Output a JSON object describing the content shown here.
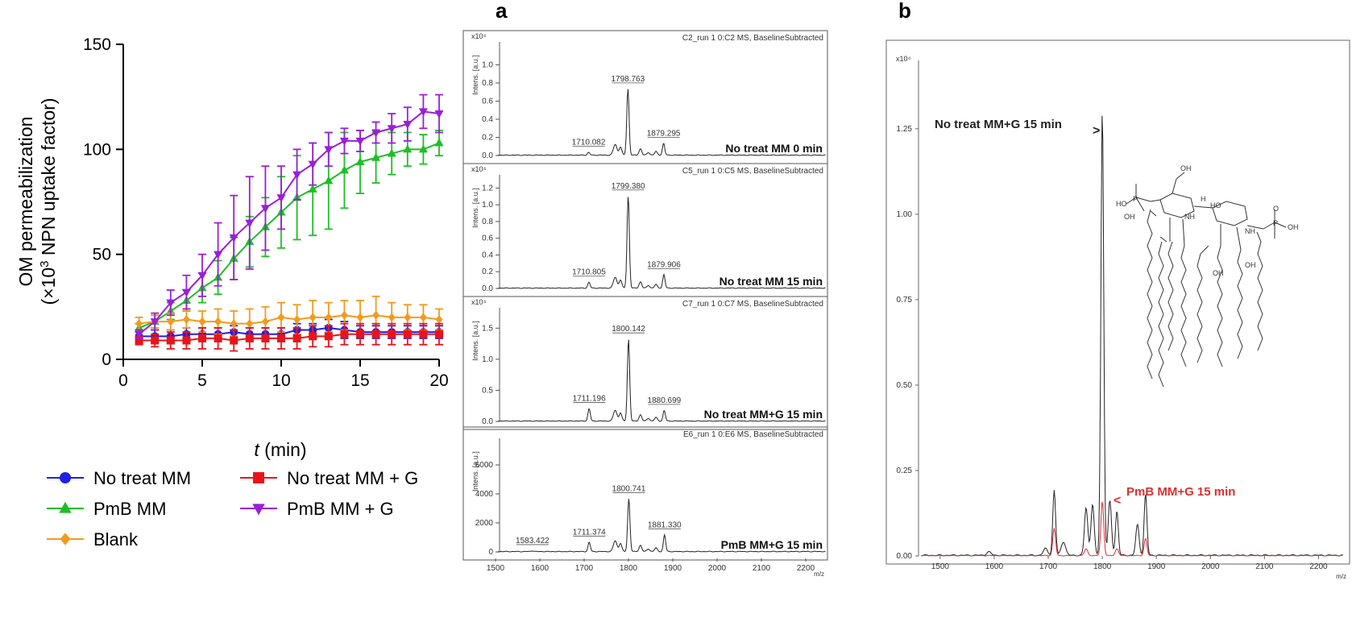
{
  "panel_labels": {
    "a": "a",
    "b": "b"
  },
  "chart_data": [
    {
      "id": "npn",
      "type": "line",
      "ylabel_line1": "OM permeabilization",
      "ylabel_line2_pre": "(×10",
      "ylabel_line2_sup": "3",
      "ylabel_line2_post": " NPN uptake factor)",
      "xlabel_var": "t",
      "xlabel_unit": " (min)",
      "xlim": [
        0,
        20
      ],
      "ylim": [
        0,
        150
      ],
      "xticks": [
        0,
        5,
        10,
        15,
        20
      ],
      "yticks": [
        0,
        50,
        100,
        150
      ],
      "x": [
        1,
        2,
        3,
        4,
        5,
        6,
        7,
        8,
        9,
        10,
        11,
        12,
        13,
        14,
        15,
        16,
        17,
        18,
        19,
        20
      ],
      "series": [
        {
          "name": "No treat MM",
          "color": "#1f1fe6",
          "marker": "circle",
          "values": [
            11,
            11,
            11,
            12,
            12,
            12,
            13,
            12,
            12,
            12,
            14,
            14,
            15,
            14,
            13,
            13,
            13,
            13,
            13,
            13
          ],
          "errors": [
            3,
            3,
            3,
            3,
            3,
            3,
            3,
            3,
            3,
            3,
            3,
            3,
            4,
            4,
            3,
            3,
            3,
            3,
            3,
            3
          ]
        },
        {
          "name": "PmB MM",
          "color": "#1ebe28",
          "marker": "triangle-up",
          "values": [
            15,
            18,
            23,
            28,
            34,
            39,
            48,
            56,
            63,
            70,
            77,
            81,
            85,
            90,
            94,
            96,
            98,
            100,
            100,
            103
          ],
          "errors": [
            2,
            3,
            4,
            5,
            7,
            8,
            10,
            12,
            14,
            17,
            20,
            22,
            23,
            18,
            15,
            12,
            10,
            8,
            7,
            6
          ]
        },
        {
          "name": "Blank",
          "color": "#f39a1c",
          "marker": "diamond",
          "values": [
            17,
            18,
            18,
            19,
            18,
            18,
            17,
            17,
            18,
            20,
            19,
            20,
            20,
            21,
            20,
            21,
            20,
            20,
            20,
            19
          ],
          "errors": [
            3,
            3,
            4,
            4,
            5,
            6,
            6,
            7,
            7,
            7,
            7,
            8,
            7,
            7,
            8,
            9,
            7,
            6,
            6,
            5
          ]
        },
        {
          "name": "No treat MM + G",
          "color": "#e8141a",
          "marker": "square",
          "values": [
            9,
            9,
            9,
            9,
            10,
            10,
            9,
            10,
            10,
            10,
            10,
            11,
            11,
            12,
            12,
            12,
            12,
            12,
            12,
            12
          ],
          "errors": [
            2,
            3,
            4,
            4,
            5,
            5,
            5,
            5,
            5,
            5,
            5,
            5,
            5,
            5,
            5,
            5,
            5,
            5,
            5,
            5
          ]
        },
        {
          "name": "PmB MM + G",
          "color": "#9a1fd4",
          "marker": "triangle-down",
          "values": [
            12,
            18,
            27,
            32,
            40,
            50,
            58,
            65,
            72,
            77,
            88,
            93,
            100,
            104,
            104,
            108,
            110,
            112,
            118,
            117
          ],
          "errors": [
            2,
            4,
            6,
            8,
            10,
            15,
            20,
            22,
            20,
            15,
            12,
            10,
            8,
            6,
            5,
            5,
            7,
            8,
            8,
            9
          ]
        }
      ],
      "legend": {
        "placement": "bottom"
      }
    },
    {
      "id": "ms-stack",
      "type": "line",
      "xlim": [
        1500,
        2250
      ],
      "xticks": [
        1500,
        1600,
        1700,
        1800,
        1900,
        2000,
        2100,
        2200
      ],
      "xunit": "m/z",
      "ylabel": "Intens. [a.u.]",
      "panels": [
        {
          "header": "C2_run 1 0:C2 MS, BaselineSubtracted",
          "exp": "x10⁴",
          "ymax": 1.2,
          "yticks": [
            "0.0",
            "0.2",
            "0.4",
            "0.6",
            "0.8",
            "1.0"
          ],
          "main_peak": 0.73,
          "label": "No treat MM 0 min",
          "peaks": [
            {
              "mz": 1710.082,
              "label": "1710.082",
              "h": 0.03
            },
            {
              "mz": 1798.763,
              "label": "1798.763",
              "h": 0.73
            },
            {
              "mz": 1879.295,
              "label": "1879.295",
              "h": 0.13
            }
          ]
        },
        {
          "header": "C5_run 1 0:C5 MS, BaselineSubtracted",
          "exp": "x10⁴",
          "ymax": 1.3,
          "yticks": [
            "0.0",
            "0.2",
            "0.4",
            "0.6",
            "0.8",
            "1.0",
            "1.2"
          ],
          "main_peak": 1.1,
          "label": "No treat MM 15 min",
          "peaks": [
            {
              "mz": 1710.805,
              "label": "1710.805",
              "h": 0.07
            },
            {
              "mz": 1799.38,
              "label": "1799.380",
              "h": 1.1
            },
            {
              "mz": 1879.906,
              "label": "1879.906",
              "h": 0.16
            }
          ]
        },
        {
          "header": "C7_run 1 0:C7 MS, BaselineSubtracted",
          "exp": "x10⁴",
          "ymax": 1.75,
          "yticks": [
            "0.0",
            "0.5",
            "1.0",
            "1.5"
          ],
          "main_peak": 1.32,
          "label": "No treat MM+G 15 min",
          "peaks": [
            {
              "mz": 1711.196,
              "label": "1711.196",
              "h": 0.2
            },
            {
              "mz": 1800.142,
              "label": "1800.142",
              "h": 1.32
            },
            {
              "mz": 1880.699,
              "label": "1880.699",
              "h": 0.17
            }
          ]
        },
        {
          "header": "E6_run 1 0:E6 MS, BaselineSubtracted",
          "exp": "",
          "ymax": 7500,
          "yticks": [
            "0",
            "2000",
            "4000",
            "6000"
          ],
          "main_peak": 3650,
          "label": "PmB MM+G 15 min",
          "peaks": [
            {
              "mz": 1583.422,
              "label": "1583.422",
              "h": 60
            },
            {
              "mz": 1711.374,
              "label": "1711.374",
              "h": 650
            },
            {
              "mz": 1800.741,
              "label": "1800.741",
              "h": 3650
            },
            {
              "mz": 1881.33,
              "label": "1881.330",
              "h": 1150
            }
          ]
        }
      ]
    },
    {
      "id": "ms-overlay",
      "type": "line",
      "xlim": [
        1460,
        2250
      ],
      "ylim": [
        0,
        1.45
      ],
      "xticks": [
        1500,
        1600,
        1700,
        1800,
        1900,
        2000,
        2100,
        2200
      ],
      "yticks": [
        "0.00",
        "0.25",
        "0.50",
        "0.75",
        "1.00",
        "1.25"
      ],
      "exp": "x10⁴",
      "xunit": "m/z",
      "series": [
        {
          "name": "No treat MM+G 15 min",
          "marker_text": ">",
          "color": "#222222",
          "peaks": [
            {
              "mz": 1711,
              "h": 0.19
            },
            {
              "mz": 1800,
              "h": 1.31
            },
            {
              "mz": 1827,
              "h": 0.13
            },
            {
              "mz": 1880,
              "h": 0.18
            }
          ]
        },
        {
          "name": "PmB MM+G 15 min",
          "marker_text": "<",
          "color": "#d93030",
          "peaks": [
            {
              "mz": 1711,
              "h": 0.08
            },
            {
              "mz": 1800,
              "h": 0.16
            },
            {
              "mz": 1880,
              "h": 0.05
            }
          ]
        }
      ]
    }
  ],
  "structure_labels": {
    "ho1": "HO",
    "ho2": "HO",
    "oh1": "OH",
    "oh2": "OH",
    "oh3": "OH",
    "oh4": "OH",
    "oh5": "OH",
    "p1": "P",
    "p2": "P",
    "nh1": "NH",
    "nh2": "NH",
    "h": "H",
    "o": "O"
  }
}
